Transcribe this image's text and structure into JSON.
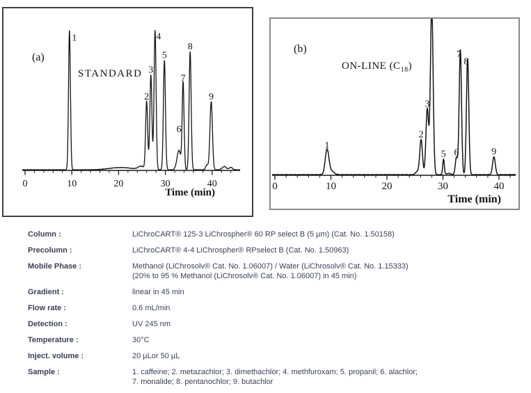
{
  "page": {
    "background": "#ffffff"
  },
  "colors": {
    "trace": "#141414",
    "axis": "#1a1a1a",
    "panel_a_border": "#3f3f3f",
    "panel_b_border": "#8a8a8a",
    "figure_text": "#141414",
    "table_text": "#3d3d58"
  },
  "chart_data": [
    {
      "type": "line",
      "chart_kind": "chromatogram",
      "panel_label": "(a)",
      "title": "STANDARD",
      "xlabel": "Time (min)",
      "x_range": [
        0,
        45
      ],
      "x_ticks": [
        0,
        10,
        20,
        30,
        40
      ],
      "minor_tick_step": 2,
      "grid": "off",
      "peaks": [
        {
          "label": "1",
          "time": 9.5,
          "height_frac": 0.86,
          "sigma": 0.2,
          "label_dx": 7,
          "label_dy": 18
        },
        {
          "label": "2",
          "time": 26.0,
          "height_frac": 0.42,
          "sigma": 0.22
        },
        {
          "label": "3",
          "time": 26.9,
          "height_frac": 0.585,
          "sigma": 0.22
        },
        {
          "label": "4",
          "time": 27.8,
          "height_frac": 0.86,
          "sigma": 0.22,
          "label_dx": 5,
          "label_dy": 16
        },
        {
          "label": "5",
          "time": 29.8,
          "height_frac": 0.675,
          "sigma": 0.22
        },
        {
          "label": "6",
          "time": 32.9,
          "height_frac": 0.12,
          "sigma": 0.42,
          "label_dy": -23
        },
        {
          "label": "7",
          "time": 33.8,
          "height_frac": 0.535,
          "sigma": 0.2
        },
        {
          "label": "8",
          "time": 35.3,
          "height_frac": 0.73,
          "sigma": 0.22
        },
        {
          "label": "9",
          "time": 39.8,
          "height_frac": 0.42,
          "sigma": 0.26
        }
      ],
      "baseline_bumps": [
        {
          "time": 20.5,
          "height_frac": 0.014,
          "sigma": 2.5
        },
        {
          "time": 24.8,
          "height_frac": 0.02,
          "sigma": 0.6
        },
        {
          "time": 38.9,
          "height_frac": 0.03,
          "sigma": 0.28
        },
        {
          "time": 42.6,
          "height_frac": 0.02,
          "sigma": 0.45
        },
        {
          "time": 44.0,
          "height_frac": 0.015,
          "sigma": 0.35
        }
      ]
    },
    {
      "type": "line",
      "chart_kind": "chromatogram",
      "panel_label": "(b)",
      "title_main": "ON-LINE (C",
      "title_sub": "18",
      "title_end": ")",
      "xlabel": "Time (min)",
      "x_range": [
        0,
        43
      ],
      "x_ticks": [
        0,
        10,
        20,
        30,
        40
      ],
      "minor_tick_step": 2,
      "grid": "off",
      "note": "peak 4 is clipped at the top frame",
      "peaks": [
        {
          "label": "1",
          "time": 9.3,
          "height_frac": 0.155,
          "sigma": 0.32
        },
        {
          "label": "2",
          "time": 26.1,
          "height_frac": 0.225,
          "sigma": 0.24
        },
        {
          "label": "3",
          "time": 27.2,
          "height_frac": 0.42,
          "sigma": 0.24
        },
        {
          "label": "4",
          "time": 28.0,
          "height_frac": 1.08,
          "sigma": 0.24,
          "label_visible": false
        },
        {
          "label": "5",
          "time": 30.1,
          "height_frac": 0.1,
          "sigma": 0.14
        },
        {
          "label": "6",
          "time": 32.4,
          "height_frac": 0.11,
          "sigma": 0.2
        },
        {
          "label": "7",
          "time": 33.1,
          "height_frac": 0.8,
          "sigma": 0.21,
          "label_dx": -2,
          "label_dy": 14
        },
        {
          "label": "8",
          "time": 34.4,
          "height_frac": 0.745,
          "sigma": 0.21,
          "label_dx": -2,
          "label_dy": 12
        },
        {
          "label": "9",
          "time": 39.1,
          "height_frac": 0.115,
          "sigma": 0.24
        }
      ],
      "baseline_bumps": [
        {
          "time": 10.0,
          "height_frac": 0.025,
          "sigma": 0.5
        },
        {
          "time": 25.4,
          "height_frac": 0.02,
          "sigma": 0.3
        },
        {
          "time": 31.0,
          "height_frac": 0.008,
          "sigma": 0.4
        }
      ]
    }
  ],
  "conditions": {
    "rows": [
      {
        "label": "Column :",
        "lines": [
          "LiChroCART® 125-3 LiChrospher® 60 RP select B (5 µm)  (Cat. No. 1.50158)"
        ]
      },
      {
        "label": "Precolumn :",
        "lines": [
          "LiChroCART® 4-4 LiChrospher® RPselect B  (Cat. No. 1.50963)"
        ]
      },
      {
        "label": "Mobile Phase :",
        "lines": [
          "Methanol (LiChrosolv® Cat. No. 1.06007) / Water (LiChrosolv® Cat. No. 1.15333)",
          "(20% to 95 % Methanol (LiChrosolv® Cat. No. 1.06007) in 45 min)"
        ]
      },
      {
        "label": "Gradient :",
        "lines": [
          "linear in 45 min"
        ]
      },
      {
        "label": "Flow rate :",
        "lines": [
          "0.6 mL/min"
        ]
      },
      {
        "label": "Detection :",
        "lines": [
          "UV 245 nm"
        ]
      },
      {
        "label": "Temperature :",
        "lines": [
          "30°C"
        ]
      },
      {
        "label": "Inject. volume :",
        "lines": [
          "20 µLor 50 µL"
        ]
      },
      {
        "label": "Sample :",
        "lines": [
          "1. caffeine; 2. metazachlor; 3. dimethachlor; 4. methfuroxam; 5. propanil; 6. alachlor;",
          "7. monalide; 8. pentanochlor; 9. butachlor"
        ]
      }
    ]
  }
}
